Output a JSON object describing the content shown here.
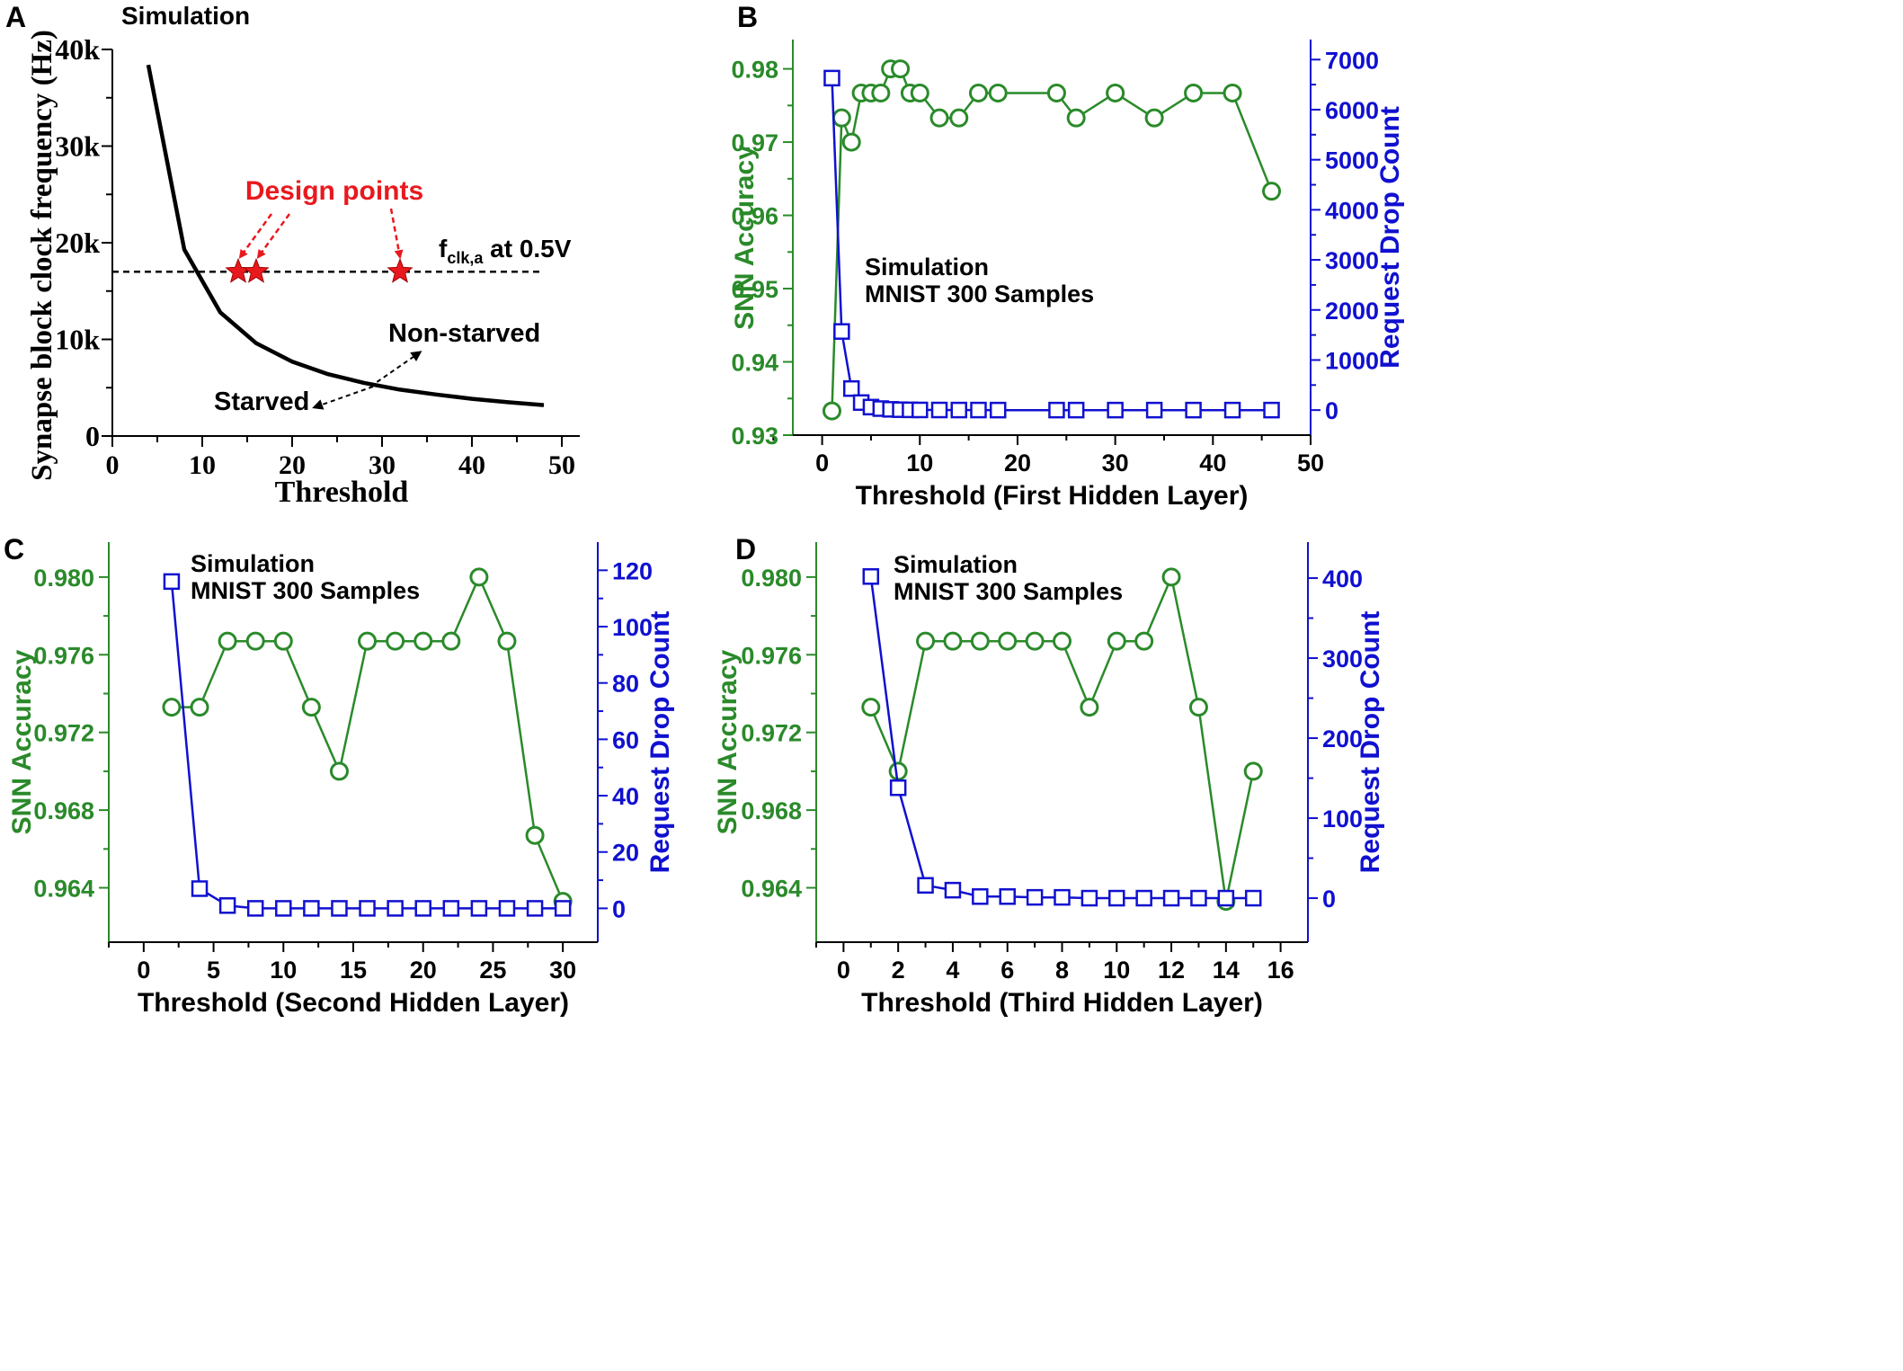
{
  "colors": {
    "accuracy": "#2a8a2a",
    "drop": "#1010d0",
    "annotation": "#e8191e",
    "axis": "#000000"
  },
  "chart_data": [
    {
      "panel": "A",
      "type": "line",
      "subtitle": "Simulation",
      "xlabel": "Threshold",
      "ylabel": "Synapse block clock frequency (Hz)",
      "xlim": [
        0,
        52
      ],
      "ylim": [
        0,
        40000
      ],
      "xticks": [
        "0",
        "10",
        "20",
        "30",
        "40",
        "50"
      ],
      "yticks": [
        "0",
        "10k",
        "20k",
        "30k",
        "40k"
      ],
      "series": [
        {
          "name": "Synapse block clock frequency",
          "x": [
            4,
            8,
            12,
            16,
            20,
            24,
            28,
            32,
            36,
            40,
            44,
            48
          ],
          "y": [
            38400,
            19300,
            12800,
            9600,
            7700,
            6400,
            5500,
            4800,
            4300,
            3850,
            3500,
            3200
          ]
        }
      ],
      "reference_line": {
        "label_main": "f",
        "label_sub": "clk,a",
        "label_rest": " at 0.5V",
        "y": 17000,
        "x_range": [
          0,
          48
        ]
      },
      "design_points": {
        "label": "Design points",
        "x": [
          14,
          16,
          32
        ],
        "y": [
          17000,
          17000,
          17000
        ]
      },
      "annotations": {
        "nonstarved": "Non-starved",
        "starved": "Starved"
      }
    },
    {
      "panel": "B",
      "type": "line",
      "xlabel": "Threshold (First Hidden Layer)",
      "ylabel_left": "SNN Accuracy",
      "ylabel_right": "Request Drop Count",
      "note_line1": "Simulation",
      "note_line2": "MNIST 300 Samples",
      "xlim": [
        -3,
        50
      ],
      "ylim_left": [
        0.93,
        0.984
      ],
      "ylim_right": [
        -500,
        7400
      ],
      "xticks": [
        "0",
        "10",
        "20",
        "30",
        "40",
        "50"
      ],
      "yticks_left": [
        "0.93",
        "0.94",
        "0.95",
        "0.96",
        "0.97",
        "0.98"
      ],
      "yticks_right": [
        "0",
        "1000",
        "2000",
        "3000",
        "4000",
        "5000",
        "6000",
        "7000"
      ],
      "series": [
        {
          "name": "SNN Accuracy",
          "axis": "left",
          "x": [
            1,
            2,
            3,
            4,
            5,
            6,
            7,
            8,
            9,
            10,
            12,
            14,
            16,
            18,
            24,
            26,
            30,
            34,
            38,
            42,
            46
          ],
          "y": [
            0.9333,
            0.9733,
            0.97,
            0.9767,
            0.9767,
            0.9767,
            0.98,
            0.98,
            0.9767,
            0.9767,
            0.9733,
            0.9733,
            0.9767,
            0.9767,
            0.9767,
            0.9733,
            0.9767,
            0.9733,
            0.9767,
            0.9767,
            0.9633
          ]
        },
        {
          "name": "Request Drop Count",
          "axis": "right",
          "x": [
            1,
            2,
            3,
            4,
            5,
            6,
            7,
            8,
            9,
            10,
            12,
            14,
            16,
            18,
            24,
            26,
            30,
            34,
            38,
            42,
            46
          ],
          "y": [
            6630,
            1570,
            430,
            150,
            60,
            30,
            15,
            8,
            5,
            3,
            2,
            1,
            1,
            0,
            0,
            0,
            0,
            0,
            0,
            0,
            0
          ]
        }
      ]
    },
    {
      "panel": "C",
      "type": "line",
      "xlabel": "Threshold (Second Hidden Layer)",
      "ylabel_left": "SNN Accuracy",
      "ylabel_right": "Request Drop Count",
      "note_line1": "Simulation",
      "note_line2": "MNIST 300 Samples",
      "xlim": [
        -2.5,
        32.5
      ],
      "ylim_left": [
        0.9612,
        0.9818
      ],
      "ylim_right": [
        -12,
        130
      ],
      "xticks": [
        "0",
        "5",
        "10",
        "15",
        "20",
        "25",
        "30"
      ],
      "yticks_left": [
        "0.964",
        "0.968",
        "0.972",
        "0.976",
        "0.980"
      ],
      "yticks_right": [
        "0",
        "20",
        "40",
        "60",
        "80",
        "100",
        "120"
      ],
      "series": [
        {
          "name": "SNN Accuracy",
          "axis": "left",
          "x": [
            2,
            4,
            6,
            8,
            10,
            12,
            14,
            16,
            18,
            20,
            22,
            24,
            26,
            28,
            30
          ],
          "y": [
            0.9733,
            0.9733,
            0.9767,
            0.9767,
            0.9767,
            0.9733,
            0.97,
            0.9767,
            0.9767,
            0.9767,
            0.9767,
            0.98,
            0.9767,
            0.9667,
            0.9633
          ]
        },
        {
          "name": "Request Drop Count",
          "axis": "right",
          "x": [
            2,
            4,
            6,
            8,
            10,
            12,
            14,
            16,
            18,
            20,
            22,
            24,
            26,
            28,
            30
          ],
          "y": [
            116,
            7,
            1,
            0,
            0,
            0,
            0,
            0,
            0,
            0,
            0,
            0,
            0,
            0,
            0
          ]
        }
      ]
    },
    {
      "panel": "D",
      "type": "line",
      "xlabel": "Threshold (Third Hidden Layer)",
      "ylabel_left": "SNN Accuracy",
      "ylabel_right": "Request Drop Count",
      "note_line1": "Simulation",
      "note_line2": "MNIST 300 Samples",
      "xlim": [
        -1,
        17
      ],
      "ylim_left": [
        0.9612,
        0.9818
      ],
      "ylim_right": [
        -55,
        445
      ],
      "xticks": [
        "0",
        "2",
        "4",
        "6",
        "8",
        "10",
        "12",
        "14",
        "16"
      ],
      "yticks_left": [
        "0.964",
        "0.968",
        "0.972",
        "0.976",
        "0.980"
      ],
      "yticks_right": [
        "0",
        "100",
        "200",
        "300",
        "400"
      ],
      "series": [
        {
          "name": "SNN Accuracy",
          "axis": "left",
          "x": [
            1,
            2,
            3,
            4,
            5,
            6,
            7,
            8,
            9,
            10,
            11,
            12,
            13,
            14,
            15
          ],
          "y": [
            0.9733,
            0.97,
            0.9767,
            0.9767,
            0.9767,
            0.9767,
            0.9767,
            0.9767,
            0.9733,
            0.9767,
            0.9767,
            0.98,
            0.9733,
            0.9633,
            0.97
          ]
        },
        {
          "name": "Request Drop Count",
          "axis": "right",
          "x": [
            1,
            2,
            3,
            4,
            5,
            6,
            7,
            8,
            9,
            10,
            11,
            12,
            13,
            14,
            15
          ],
          "y": [
            402,
            138,
            16,
            10,
            2,
            2,
            1,
            1,
            0,
            0,
            0,
            0,
            0,
            0,
            0
          ]
        }
      ]
    }
  ]
}
